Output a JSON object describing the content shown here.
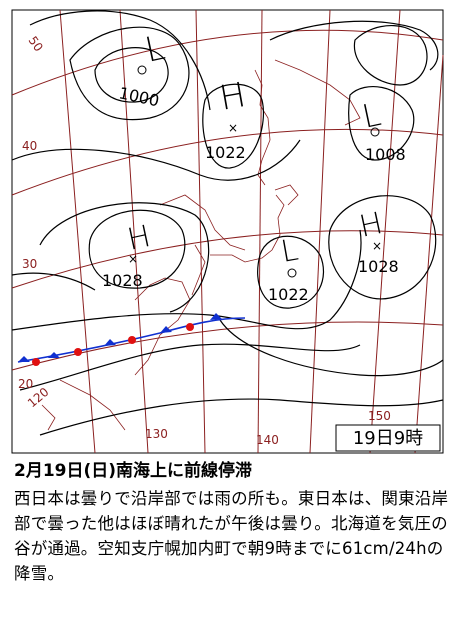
{
  "map": {
    "timestamp": "19日9時",
    "pressure_systems": [
      {
        "type": "L",
        "value": "1000"
      },
      {
        "type": "H",
        "value": "1022"
      },
      {
        "type": "L",
        "value": "1008"
      },
      {
        "type": "H",
        "value": "1028"
      },
      {
        "type": "L",
        "value": "1022"
      },
      {
        "type": "H",
        "value": "1028"
      }
    ],
    "isobar_labels": [
      "50",
      "40",
      "30",
      "20",
      "120",
      "130",
      "140",
      "150"
    ],
    "colors": {
      "graticule": "#8b2020",
      "isobar": "#000000",
      "coast": "#8b2020",
      "front_warm": "#e01010",
      "front_cold": "#1030d0"
    }
  },
  "caption": {
    "title": "2月19日(日)南海上に前線停滞",
    "body": "西日本は曇りで沿岸部では雨の所も。東日本は、関東沿岸部で曇った他はほぼ晴れたが午後は曇り。北海道を気圧の谷が通過。空知支庁幌加内町で朝9時までに61cm/24hの降雪。"
  }
}
